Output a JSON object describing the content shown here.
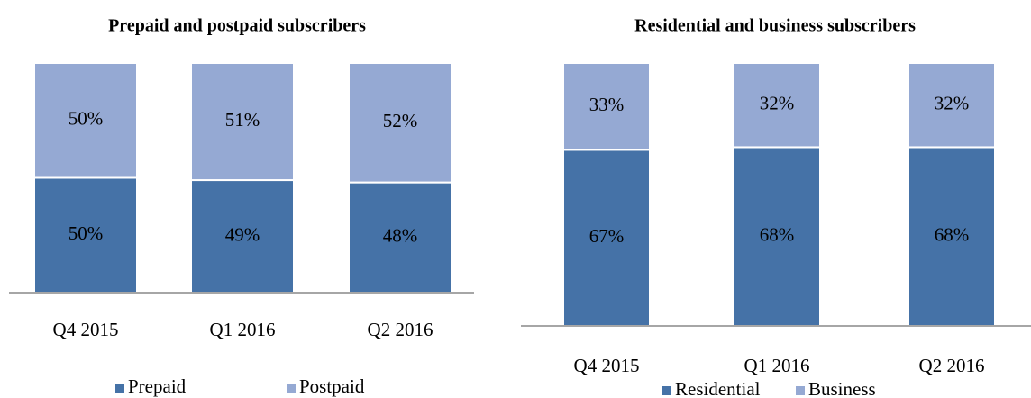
{
  "chart_data": [
    {
      "type": "stacked_bar",
      "title": "Prepaid and postpaid subscribers",
      "categories": [
        "Q4 2015",
        "Q1 2016",
        "Q2 2016"
      ],
      "ylim": [
        0,
        100
      ],
      "series": [
        {
          "name": "Prepaid",
          "color": "#4572a7",
          "values": [
            50,
            49,
            48
          ],
          "value_labels": [
            "50%",
            "49%",
            "48%"
          ]
        },
        {
          "name": "Postpaid",
          "color": "#95a9d3",
          "values": [
            50,
            51,
            52
          ],
          "value_labels": [
            "50%",
            "51%",
            "52%"
          ]
        }
      ]
    },
    {
      "type": "stacked_bar",
      "title": "Residential and business subscribers",
      "categories": [
        "Q4 2015",
        "Q1 2016",
        "Q2 2016"
      ],
      "ylim": [
        0,
        100
      ],
      "series": [
        {
          "name": "Residential",
          "color": "#4572a7",
          "values": [
            67,
            68,
            68
          ],
          "value_labels": [
            "67%",
            "68%",
            "68%"
          ]
        },
        {
          "name": "Business",
          "color": "#95a9d3",
          "values": [
            33,
            32,
            32
          ],
          "value_labels": [
            "33%",
            "32%",
            "32%"
          ]
        }
      ]
    }
  ]
}
